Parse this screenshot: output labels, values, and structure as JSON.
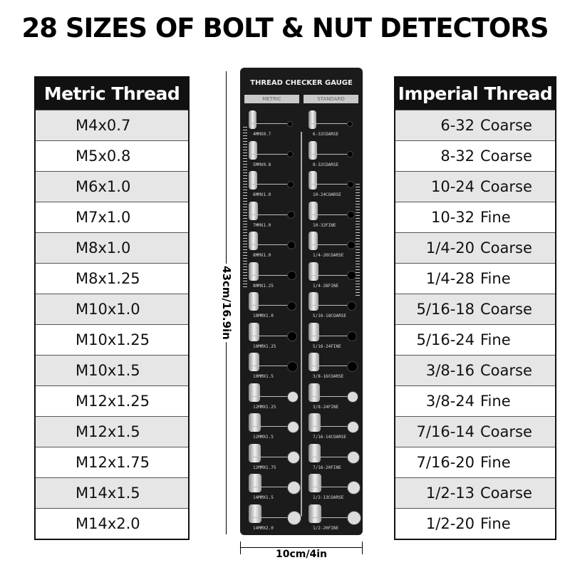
{
  "title": "28 SIZES OF BOLT & NUT DETECTORS",
  "metric": {
    "header": "Metric Thread",
    "rows": [
      "M4x0.7",
      "M5x0.8",
      "M6x1.0",
      "M7x1.0",
      "M8x1.0",
      "M8x1.25",
      "M10x1.0",
      "M10x1.25",
      "M10x1.5",
      "M12x1.25",
      "M12x1.5",
      "M12x1.75",
      "M14x1.5",
      "M14x2.0"
    ]
  },
  "imperial": {
    "header": "Imperial Thread",
    "rows": [
      {
        "size": "6-32",
        "type": "Coarse"
      },
      {
        "size": "8-32",
        "type": "Coarse"
      },
      {
        "size": "10-24",
        "type": "Coarse"
      },
      {
        "size": "10-32",
        "type": "Fine"
      },
      {
        "size": "1/4-20",
        "type": "Coarse"
      },
      {
        "size": "1/4-28",
        "type": "Fine"
      },
      {
        "size": "5/16-18",
        "type": "Coarse"
      },
      {
        "size": "5/16-24",
        "type": "Fine"
      },
      {
        "size": "3/8-16",
        "type": "Coarse"
      },
      {
        "size": "3/8-24",
        "type": "Fine"
      },
      {
        "size": "7/16-14",
        "type": "Coarse"
      },
      {
        "size": "7/16-20",
        "type": "Fine"
      },
      {
        "size": "1/2-13",
        "type": "Coarse"
      },
      {
        "size": "1/2-20",
        "type": "Fine"
      }
    ]
  },
  "gauge": {
    "title": "THREAD CHECKER GAUGE",
    "metric_label": "METRIC",
    "standard_label": "STANDARD",
    "metric_marks": [
      "4MMX0.7",
      "5MMX0.8",
      "6MMX1.0",
      "7MMX1.0",
      "8MMX1.0",
      "8MMX1.25",
      "10MMX1.0",
      "10MMX1.25",
      "10MMX1.5",
      "12MMX1.25",
      "12MMX1.5",
      "12MMX1.75",
      "14MMX1.5",
      "14MMX2.0"
    ],
    "standard_marks": [
      "6-32COARSE",
      "8-32COARSE",
      "10-24COARSE",
      "10-32FINE",
      "1/4-20COARSE",
      "1/4-28FINE",
      "5/16-18COARSE",
      "5/16-24FINE",
      "3/8-16COARSE",
      "3/8-24FINE",
      "7/16-14COARSE",
      "7/16-20FINE",
      "1/2-13COARSE",
      "1/2-20FINE"
    ]
  },
  "dimensions": {
    "height": "43cm/16.9in",
    "width": "10cm/4in"
  }
}
